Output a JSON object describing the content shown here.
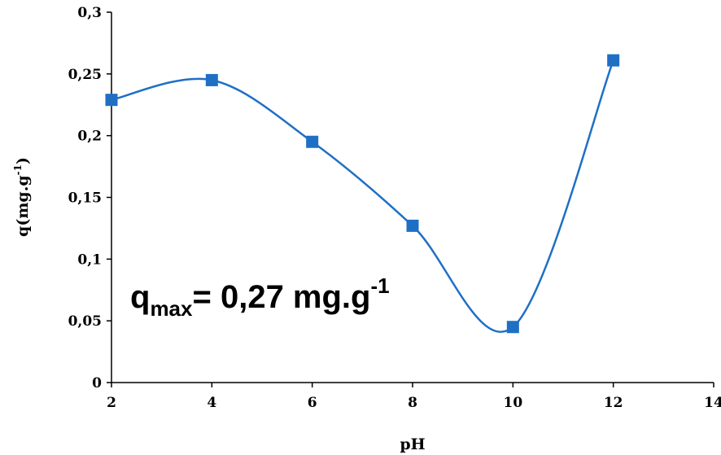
{
  "chart_data": {
    "type": "scatter",
    "title": "",
    "xlabel": "pH",
    "ylabel": {
      "base": "q(mg.g",
      "sup": "-1",
      "end": ")"
    },
    "xlim": [
      2,
      14
    ],
    "ylim": [
      0,
      0.3
    ],
    "x_ticks": [
      "2",
      "4",
      "6",
      "8",
      "10",
      "12",
      "14"
    ],
    "y_ticks": [
      "0",
      "0,05",
      "0,1",
      "0,15",
      "0,2",
      "0,25",
      "0,3"
    ],
    "series": [
      {
        "points": [
          {
            "x": 2,
            "y": 0.229
          },
          {
            "x": 4,
            "y": 0.245
          },
          {
            "x": 6,
            "y": 0.195
          },
          {
            "x": 8,
            "y": 0.127
          },
          {
            "x": 10,
            "y": 0.045
          },
          {
            "x": 12,
            "y": 0.261
          }
        ],
        "color": "#1f6fc5",
        "line": "smooth",
        "marker": "square"
      }
    ],
    "annotation": {
      "q": "q",
      "sub": "max",
      "text": "= 0,27 mg.g",
      "sup": "-1"
    },
    "grid": false,
    "legend": "none"
  }
}
